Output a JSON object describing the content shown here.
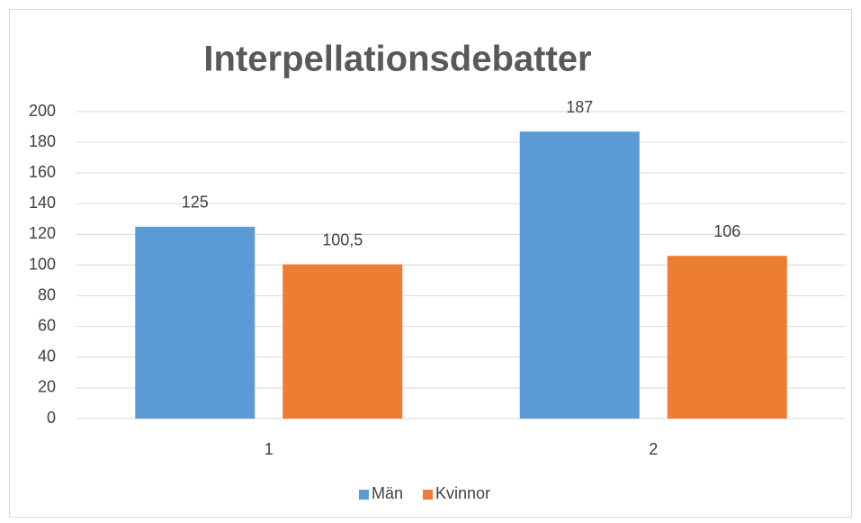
{
  "chart_data": {
    "type": "bar",
    "title": "Interpellationsdebatter",
    "categories": [
      "1",
      "2"
    ],
    "series": [
      {
        "name": "Män",
        "color": "#5b9bd5",
        "values": [
          125,
          187
        ]
      },
      {
        "name": "Kvinnor",
        "color": "#ed7d31",
        "values": [
          100.5,
          106
        ],
        "value_labels": [
          "100,5",
          "106"
        ]
      }
    ],
    "ylim": [
      0,
      200
    ],
    "yticks": [
      0,
      20,
      40,
      60,
      80,
      100,
      120,
      140,
      160,
      180,
      200
    ],
    "grid": true,
    "legend": "bottom"
  }
}
